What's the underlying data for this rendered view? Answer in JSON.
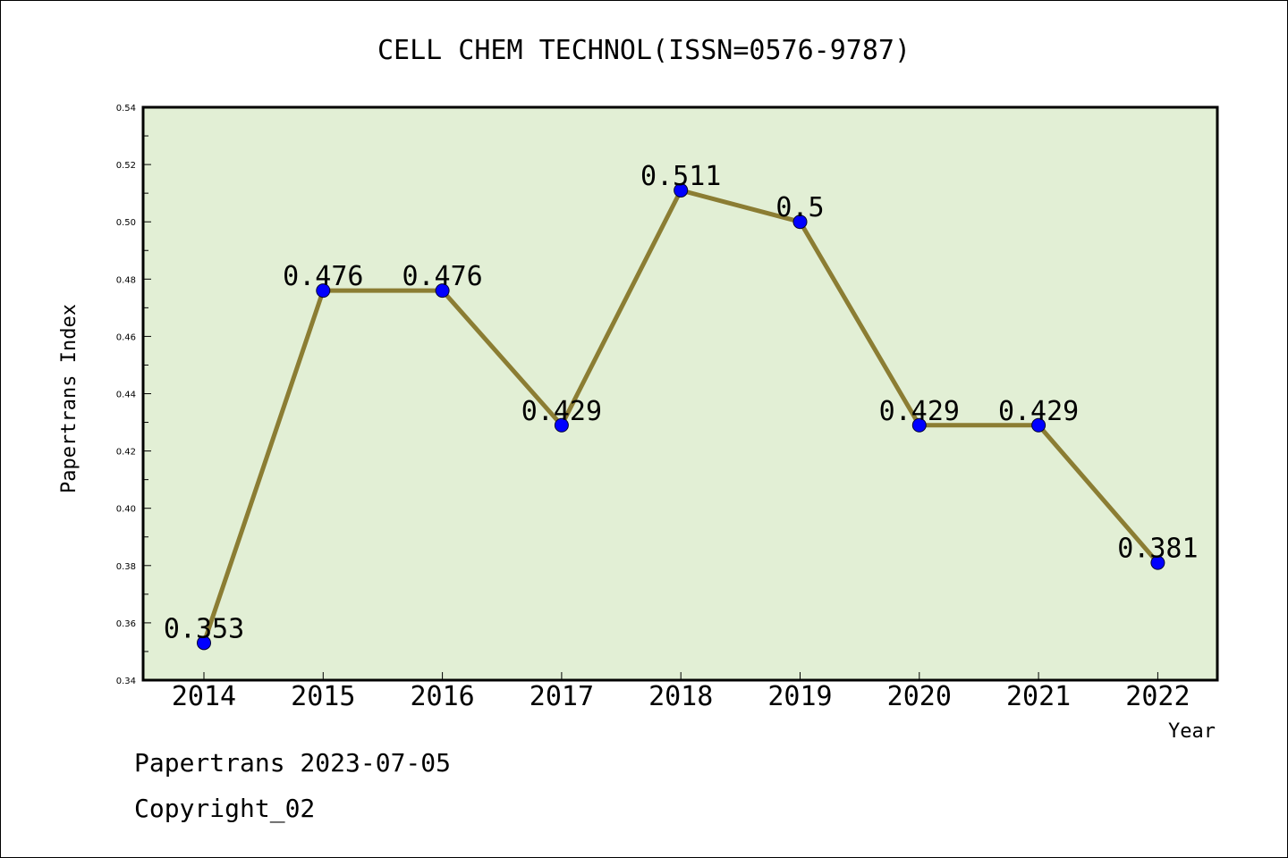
{
  "chart_data": {
    "type": "line",
    "title": "CELL CHEM TECHNOL(ISSN=0576-9787)",
    "xlabel": "Year",
    "ylabel": "Papertrans Index",
    "categories": [
      "2014",
      "2015",
      "2016",
      "2017",
      "2018",
      "2019",
      "2020",
      "2021",
      "2022"
    ],
    "values": [
      0.353,
      0.476,
      0.476,
      0.429,
      0.511,
      0.5,
      0.429,
      0.429,
      0.381
    ],
    "data_labels": [
      "0.353",
      "0.476",
      "0.476",
      "0.429",
      "0.511",
      "0.5",
      "0.429",
      "0.429",
      "0.381"
    ],
    "ylim": [
      0.34,
      0.54
    ],
    "yticks": [
      "0.34",
      "0.36",
      "0.38",
      "0.40",
      "0.42",
      "0.44",
      "0.46",
      "0.48",
      "0.50",
      "0.52",
      "0.54"
    ],
    "grid": false,
    "colors": {
      "line": "#8b7d33",
      "marker": "#0000ff",
      "plot_background": "#e2efd5",
      "frame": "#000000"
    }
  },
  "footer": {
    "line1": "Papertrans 2023-07-05",
    "line2": "Copyright_02"
  }
}
